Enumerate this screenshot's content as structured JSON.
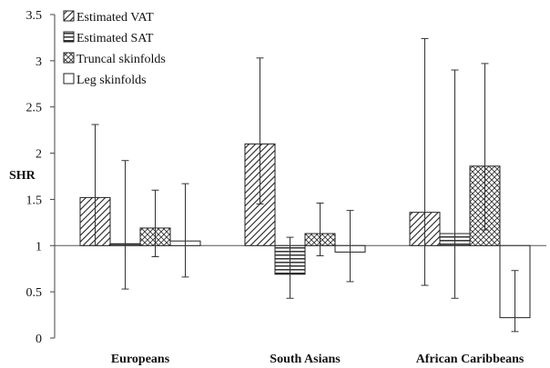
{
  "chart_data": {
    "type": "bar",
    "title": "",
    "xlabel": "",
    "ylabel": "SHR",
    "ylim": [
      0,
      3.5
    ],
    "yticks": [
      "0",
      "0.5",
      "1",
      "1.5",
      "2",
      "2.5",
      "3",
      "3.5"
    ],
    "baseline": 1,
    "grid": false,
    "legend_position": "top-left",
    "categories": [
      "Europeans",
      "South Asians",
      "African Caribbeans"
    ],
    "series": [
      {
        "name": "Estimated VAT",
        "pattern": "diagonal-down",
        "values": [
          1.52,
          2.1,
          1.36
        ],
        "err_low": [
          1.0,
          1.45,
          0.57
        ],
        "err_high": [
          2.31,
          3.03,
          3.24
        ]
      },
      {
        "name": "Estimated SAT",
        "pattern": "horizontal",
        "values": [
          1.02,
          0.69,
          1.13
        ],
        "err_low": [
          0.53,
          0.43,
          0.43
        ],
        "err_high": [
          1.92,
          1.09,
          2.9
        ]
      },
      {
        "name": "Truncal skinfolds",
        "pattern": "crosshatch",
        "values": [
          1.19,
          1.13,
          1.86
        ],
        "err_low": [
          0.88,
          0.89,
          1.17
        ],
        "err_high": [
          1.6,
          1.46,
          2.97
        ]
      },
      {
        "name": "Leg skinfolds",
        "pattern": "none",
        "values": [
          1.05,
          0.93,
          0.22
        ],
        "err_low": [
          0.66,
          0.61,
          0.07
        ],
        "err_high": [
          1.67,
          1.38,
          0.73
        ]
      }
    ]
  }
}
